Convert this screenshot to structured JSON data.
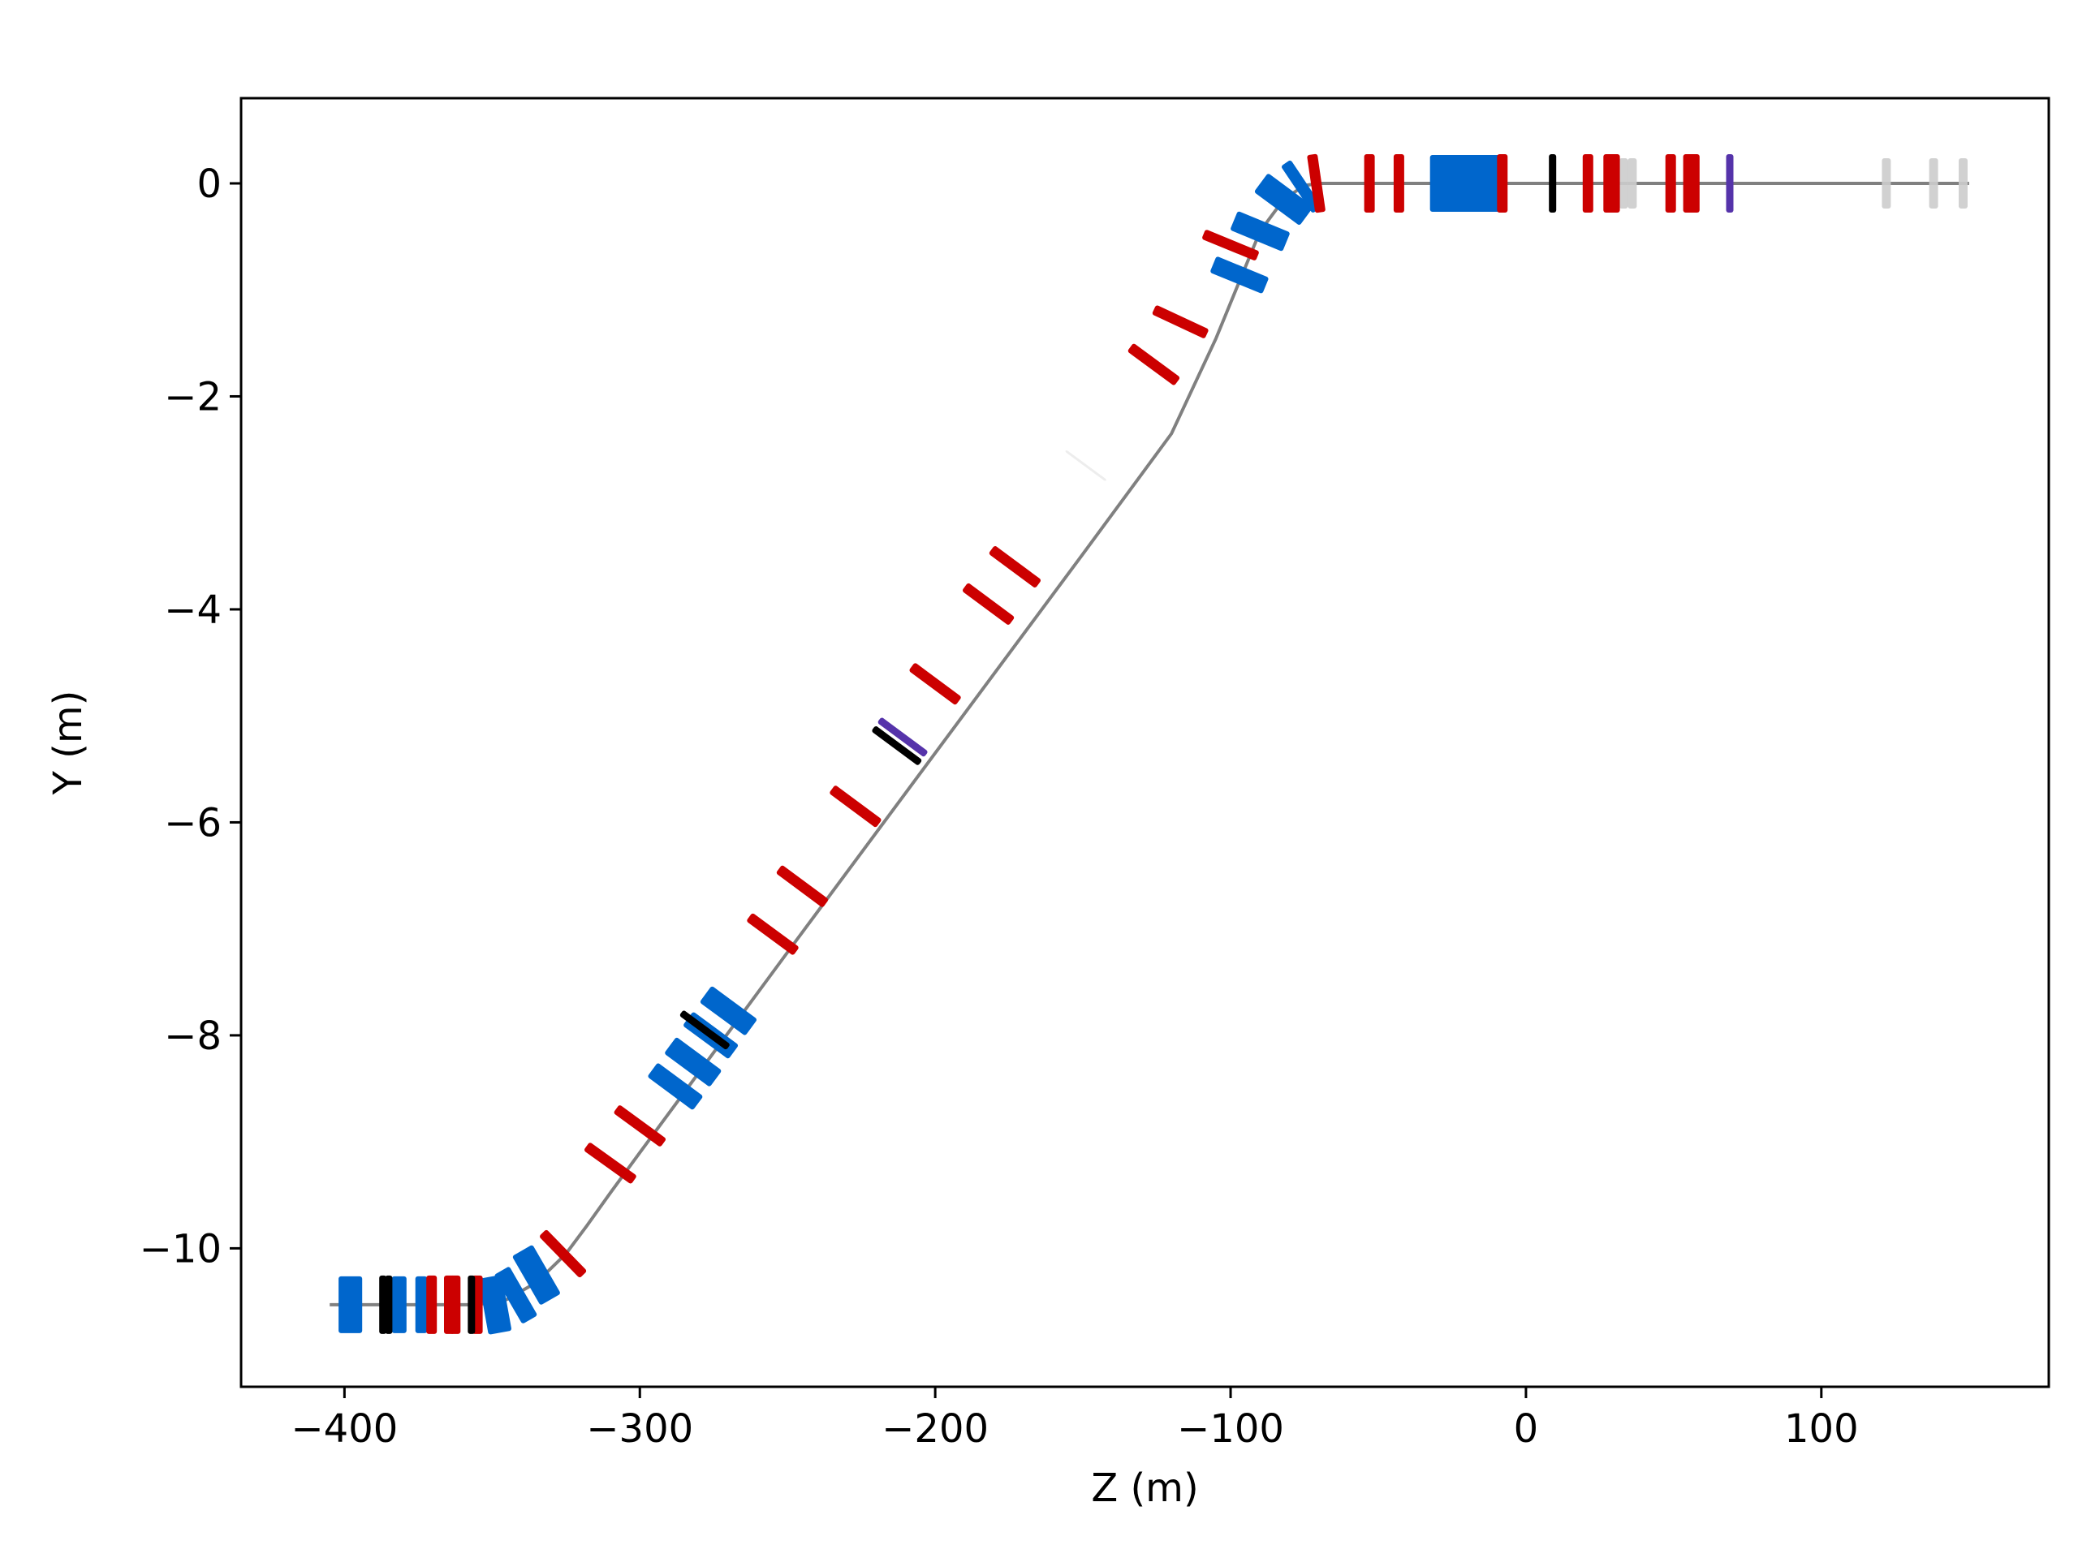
{
  "chart_data": {
    "type": "line",
    "title": "",
    "xlabel": "Z (m)",
    "ylabel": "Y (m)",
    "xlim": [
      -435,
      177
    ],
    "ylim": [
      -11.3,
      0.8
    ],
    "xticks": [
      -400,
      -300,
      -200,
      -100,
      0,
      100
    ],
    "xtick_labels": [
      "−400",
      "−300",
      "−200",
      "−100",
      "0",
      "100"
    ],
    "yticks": [
      0,
      -2,
      -4,
      -6,
      -8,
      -10
    ],
    "ytick_labels": [
      "0",
      "−2",
      "−4",
      "−6",
      "−8",
      "−10"
    ],
    "grid": false,
    "colors": {
      "beamline": "#808080",
      "dipole": "#0066cc",
      "quadrupole": "#cc0000",
      "corrector": "#000000",
      "sextupole": "#5533aa",
      "other": "#cccccc"
    },
    "series": [
      {
        "x": [
          -405,
          -375,
          -355,
          -345,
          -335,
          -325,
          -318,
          -310,
          -300,
          -280,
          -250,
          -200,
          -150,
          -120,
          -105,
          -97,
          -90,
          -82,
          -75,
          -70,
          0,
          50,
          100,
          150
        ],
        "y": [
          -10.53,
          -10.53,
          -10.53,
          -10.48,
          -10.32,
          -10.05,
          -9.79,
          -9.48,
          -9.1,
          -8.35,
          -7.22,
          -5.35,
          -3.48,
          -2.35,
          -1.46,
          -0.92,
          -0.45,
          -0.15,
          -0.02,
          0,
          0,
          0,
          0,
          0
        ]
      }
    ],
    "elements": [
      {
        "kind": "dipole",
        "z": -398,
        "y": -10.53,
        "len": 8
      },
      {
        "kind": "dipole",
        "z": -381.5,
        "y": -10.53,
        "len": 5
      },
      {
        "kind": "dipole",
        "z": -374,
        "y": -10.53,
        "len": 4
      },
      {
        "kind": "dipole",
        "z": -349,
        "y": -10.53,
        "len": 8
      },
      {
        "kind": "dipole",
        "z": -342,
        "y": -10.44,
        "len": 6
      },
      {
        "kind": "dipole",
        "z": -335,
        "y": -10.25,
        "len": 8
      },
      {
        "kind": "dipole",
        "z": -288,
        "y": -8.48,
        "len": 6
      },
      {
        "kind": "dipole",
        "z": -282,
        "y": -8.25,
        "len": 7
      },
      {
        "kind": "dipole",
        "z": -276,
        "y": -8.0,
        "len": 6
      },
      {
        "kind": "dipole",
        "z": -270,
        "y": -7.77,
        "len": 7
      },
      {
        "kind": "dipole",
        "z": -97,
        "y": -0.86,
        "len": 6
      },
      {
        "kind": "dipole",
        "z": -90,
        "y": -0.45,
        "len": 7
      },
      {
        "kind": "dipole",
        "z": -82,
        "y": -0.15,
        "len": 8
      },
      {
        "kind": "dipole",
        "z": -76,
        "y": -0.03,
        "len": 4
      },
      {
        "kind": "dipole",
        "z": -20,
        "y": 0,
        "len": 25
      },
      {
        "kind": "quadrupole",
        "z": -370.5,
        "y": -10.53
      },
      {
        "kind": "quadrupole",
        "z": -364.5,
        "y": -10.53
      },
      {
        "kind": "quadrupole",
        "z": -362.5,
        "y": -10.53
      },
      {
        "kind": "quadrupole",
        "z": -355,
        "y": -10.53
      },
      {
        "kind": "quadrupole",
        "z": -326,
        "y": -10.05
      },
      {
        "kind": "quadrupole",
        "z": -310,
        "y": -9.2
      },
      {
        "kind": "quadrupole",
        "z": -300,
        "y": -8.85
      },
      {
        "kind": "quadrupole",
        "z": -255,
        "y": -7.05
      },
      {
        "kind": "quadrupole",
        "z": -245,
        "y": -6.6
      },
      {
        "kind": "quadrupole",
        "z": -227,
        "y": -5.85
      },
      {
        "kind": "quadrupole",
        "z": -200,
        "y": -4.7
      },
      {
        "kind": "quadrupole",
        "z": -182,
        "y": -3.95
      },
      {
        "kind": "quadrupole",
        "z": -173,
        "y": -3.6
      },
      {
        "kind": "quadrupole",
        "z": -126,
        "y": -1.7
      },
      {
        "kind": "quadrupole",
        "z": -117,
        "y": -1.3
      },
      {
        "kind": "quadrupole",
        "z": -100,
        "y": -0.58
      },
      {
        "kind": "quadrupole",
        "z": -71,
        "y": 0
      },
      {
        "kind": "quadrupole",
        "z": -53,
        "y": 0
      },
      {
        "kind": "quadrupole",
        "z": -43,
        "y": 0
      },
      {
        "kind": "quadrupole",
        "z": -8,
        "y": 0
      },
      {
        "kind": "quadrupole",
        "z": 21,
        "y": 0
      },
      {
        "kind": "quadrupole",
        "z": 28,
        "y": 0
      },
      {
        "kind": "quadrupole",
        "z": 30,
        "y": 0
      },
      {
        "kind": "quadrupole",
        "z": 49,
        "y": 0
      },
      {
        "kind": "quadrupole",
        "z": 55,
        "y": 0
      },
      {
        "kind": "quadrupole",
        "z": 57,
        "y": 0
      },
      {
        "kind": "corrector",
        "z": -387,
        "y": -10.53
      },
      {
        "kind": "corrector",
        "z": -385,
        "y": -10.53
      },
      {
        "kind": "corrector",
        "z": -357,
        "y": -10.53
      },
      {
        "kind": "corrector",
        "z": -278,
        "y": -7.95
      },
      {
        "kind": "corrector",
        "z": -213,
        "y": -5.28
      },
      {
        "kind": "corrector",
        "z": 9,
        "y": 0
      },
      {
        "kind": "sextupole",
        "z": -211,
        "y": -5.2
      },
      {
        "kind": "sextupole",
        "z": 69,
        "y": 0
      },
      {
        "kind": "other",
        "z": -149,
        "y": -2.65
      },
      {
        "kind": "other",
        "z": 33,
        "y": 0
      },
      {
        "kind": "other",
        "z": 36,
        "y": 0
      },
      {
        "kind": "other",
        "z": 122,
        "y": 0
      },
      {
        "kind": "other",
        "z": 138,
        "y": 0
      },
      {
        "kind": "other",
        "z": 148,
        "y": 0
      }
    ]
  }
}
